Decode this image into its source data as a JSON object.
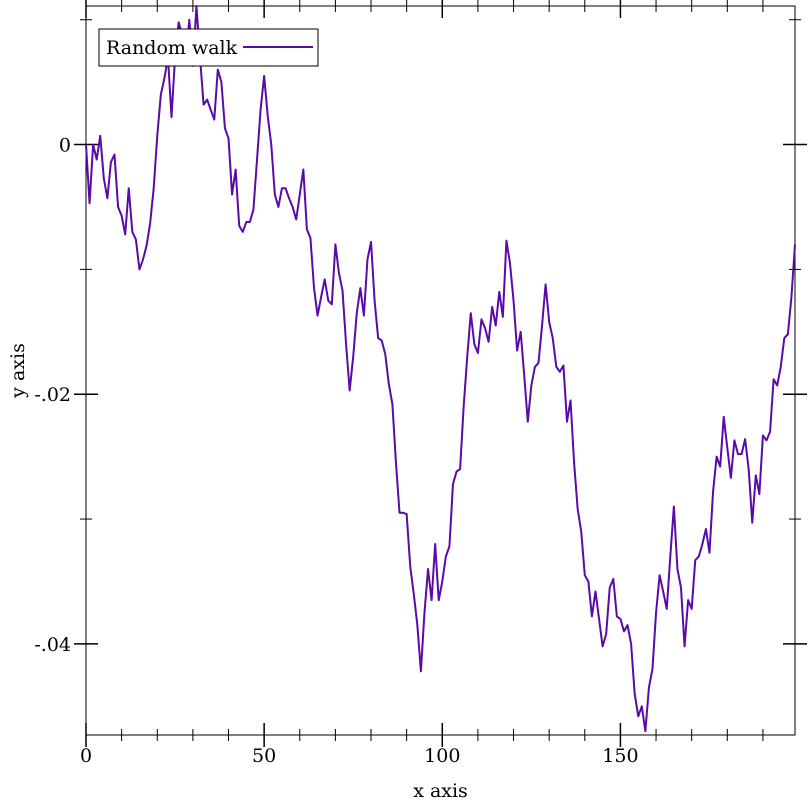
{
  "chart_data": {
    "type": "line",
    "xlabel": "x axis",
    "ylabel": "y axis",
    "xlim": [
      0,
      199
    ],
    "ylim": [
      -0.0473,
      0.0111
    ],
    "x_ticks": [
      0,
      50,
      100,
      150
    ],
    "x_tick_labels": [
      "0",
      "50",
      "100",
      "150"
    ],
    "y_ticks": [
      0,
      -0.02,
      -0.04
    ],
    "y_tick_labels": [
      "0",
      "-.02",
      "-.04"
    ],
    "legend_position": "top-left",
    "grid": false,
    "series": [
      {
        "name": "Random walk",
        "color": "#5a0aa8",
        "x": [
          0,
          1,
          2,
          3,
          4,
          5,
          6,
          7,
          8,
          9,
          10,
          11,
          12,
          13,
          14,
          15,
          16,
          17,
          18,
          19,
          20,
          21,
          22,
          23,
          24,
          25,
          26,
          27,
          28,
          29,
          30,
          31,
          32,
          33,
          34,
          35,
          36,
          37,
          38,
          39,
          40,
          41,
          42,
          43,
          44,
          45,
          46,
          47,
          48,
          49,
          50,
          51,
          52,
          53,
          54,
          55,
          56,
          57,
          58,
          59,
          60,
          61,
          62,
          63,
          64,
          65,
          66,
          67,
          68,
          69,
          70,
          71,
          72,
          73,
          74,
          75,
          76,
          77,
          78,
          79,
          80,
          81,
          82,
          83,
          84,
          85,
          86,
          87,
          88,
          89,
          90,
          91,
          92,
          93,
          94,
          95,
          96,
          97,
          98,
          99,
          100,
          101,
          102,
          103,
          104,
          105,
          106,
          107,
          108,
          109,
          110,
          111,
          112,
          113,
          114,
          115,
          116,
          117,
          118,
          119,
          120,
          121,
          122,
          123,
          124,
          125,
          126,
          127,
          128,
          129,
          130,
          131,
          132,
          133,
          134,
          135,
          136,
          137,
          138,
          139,
          140,
          141,
          142,
          143,
          144,
          145,
          146,
          147,
          148,
          149,
          150,
          151,
          152,
          153,
          154,
          155,
          156,
          157,
          158,
          159,
          160,
          161,
          162,
          163,
          164,
          165,
          166,
          167,
          168,
          169,
          170,
          171,
          172,
          173,
          174,
          175,
          176,
          177,
          178,
          179,
          180,
          181,
          182,
          183,
          184,
          185,
          186,
          187,
          188,
          189,
          190,
          191,
          192,
          193,
          194,
          195,
          196,
          197,
          198,
          199
        ],
        "y": [
          0.0,
          -0.0047,
          0.0,
          -0.0012,
          0.0007,
          -0.0027,
          -0.0043,
          -0.0014,
          -0.0008,
          -0.005,
          -0.0057,
          -0.0072,
          -0.0035,
          -0.007,
          -0.0076,
          -0.01,
          -0.0092,
          -0.0081,
          -0.0063,
          -0.0035,
          0.0007,
          0.004,
          0.0053,
          0.007,
          0.0022,
          0.007,
          0.0098,
          0.0088,
          0.007,
          0.01,
          0.0063,
          0.0111,
          0.007,
          0.0032,
          0.0036,
          0.0028,
          0.002,
          0.006,
          0.005,
          0.0013,
          0.0005,
          -0.004,
          -0.002,
          -0.0065,
          -0.007,
          -0.0062,
          -0.0062,
          -0.0052,
          -0.0012,
          0.0028,
          0.0055,
          0.0023,
          0.0,
          -0.004,
          -0.005,
          -0.0035,
          -0.0035,
          -0.0043,
          -0.005,
          -0.006,
          -0.004,
          -0.002,
          -0.0068,
          -0.0075,
          -0.0115,
          -0.0137,
          -0.0122,
          -0.0108,
          -0.0125,
          -0.0128,
          -0.008,
          -0.0103,
          -0.0117,
          -0.016,
          -0.0197,
          -0.017,
          -0.0135,
          -0.0115,
          -0.0137,
          -0.0092,
          -0.0078,
          -0.0125,
          -0.0155,
          -0.0157,
          -0.0168,
          -0.0192,
          -0.0208,
          -0.0255,
          -0.0295,
          -0.0295,
          -0.0296,
          -0.0338,
          -0.036,
          -0.0385,
          -0.0422,
          -0.0375,
          -0.034,
          -0.0365,
          -0.032,
          -0.0365,
          -0.035,
          -0.033,
          -0.0322,
          -0.0272,
          -0.0262,
          -0.026,
          -0.021,
          -0.017,
          -0.0135,
          -0.016,
          -0.0167,
          -0.014,
          -0.0147,
          -0.0158,
          -0.013,
          -0.0145,
          -0.0118,
          -0.0138,
          -0.0077,
          -0.0095,
          -0.0125,
          -0.0165,
          -0.015,
          -0.0185,
          -0.0222,
          -0.0193,
          -0.0178,
          -0.0175,
          -0.0145,
          -0.0112,
          -0.0142,
          -0.0155,
          -0.0178,
          -0.0182,
          -0.0177,
          -0.0222,
          -0.0205,
          -0.0255,
          -0.0292,
          -0.031,
          -0.0345,
          -0.035,
          -0.0378,
          -0.0358,
          -0.038,
          -0.0402,
          -0.0392,
          -0.0355,
          -0.0348,
          -0.0378,
          -0.038,
          -0.039,
          -0.0385,
          -0.04,
          -0.044,
          -0.0458,
          -0.045,
          -0.047,
          -0.0435,
          -0.042,
          -0.0375,
          -0.0345,
          -0.0358,
          -0.0372,
          -0.033,
          -0.029,
          -0.034,
          -0.0355,
          -0.0402,
          -0.0365,
          -0.0372,
          -0.0333,
          -0.033,
          -0.032,
          -0.0308,
          -0.0327,
          -0.0278,
          -0.025,
          -0.0258,
          -0.0218,
          -0.0243,
          -0.0267,
          -0.0237,
          -0.0248,
          -0.0248,
          -0.0236,
          -0.026,
          -0.0303,
          -0.0265,
          -0.028,
          -0.0233,
          -0.0237,
          -0.023,
          -0.0188,
          -0.0193,
          -0.0178,
          -0.0155,
          -0.0152,
          -0.0122,
          -0.008
        ]
      }
    ]
  }
}
